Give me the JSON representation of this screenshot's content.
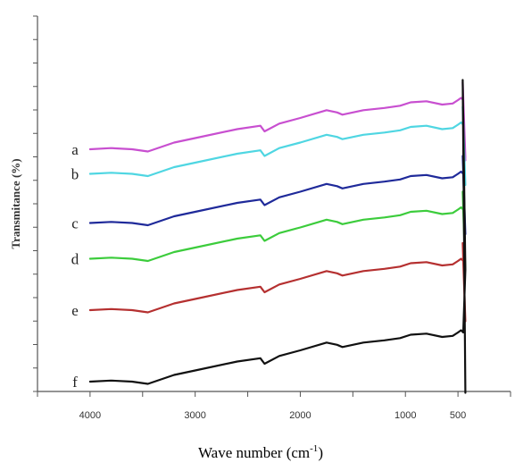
{
  "chart_data": {
    "type": "line",
    "xlabel": "Wave number (cm",
    "xlabel_sup": "-1",
    "xlabel_close": ")",
    "ylabel": "Transmitance (%)",
    "xlim": [
      4500,
      0
    ],
    "x_ticks": [
      4000,
      3000,
      2000,
      1000,
      500
    ],
    "x_tick_labels": [
      "4000",
      "3000",
      "2000",
      "1000",
      "500"
    ],
    "grid": false,
    "series": [
      {
        "name": "a",
        "color": "#c84fd0",
        "offset": 9.0,
        "x": [
          4000,
          3800,
          3600,
          3450,
          3200,
          3000,
          2600,
          2380,
          2340,
          2200,
          2000,
          1750,
          1650,
          1600,
          1400,
          1200,
          1050,
          950,
          800,
          650,
          550,
          500,
          470,
          450,
          430
        ]
      },
      {
        "name": "b",
        "color": "#4fd6e2",
        "offset": 7.9,
        "x": [
          4000,
          3800,
          3600,
          3450,
          3200,
          3000,
          2600,
          2380,
          2340,
          2200,
          2000,
          1750,
          1650,
          1600,
          1400,
          1200,
          1050,
          950,
          800,
          650,
          550,
          500,
          470,
          450,
          430
        ]
      },
      {
        "name": "c",
        "color": "#1f2a9a",
        "offset": 5.7,
        "x": [
          4000,
          3800,
          3600,
          3450,
          3200,
          3000,
          2600,
          2380,
          2340,
          2200,
          2000,
          1750,
          1650,
          1600,
          1400,
          1200,
          1050,
          950,
          800,
          650,
          550,
          500,
          470,
          450,
          430
        ]
      },
      {
        "name": "d",
        "color": "#3ccc3c",
        "offset": 4.1,
        "x": [
          4000,
          3800,
          3600,
          3450,
          3200,
          3000,
          2600,
          2380,
          2340,
          2200,
          2000,
          1750,
          1650,
          1600,
          1400,
          1200,
          1050,
          950,
          800,
          650,
          550,
          500,
          470,
          450,
          430
        ]
      },
      {
        "name": "e",
        "color": "#b53030",
        "offset": 1.8,
        "x": [
          4000,
          3800,
          3600,
          3450,
          3200,
          3000,
          2600,
          2380,
          2340,
          2200,
          2000,
          1750,
          1650,
          1600,
          1400,
          1200,
          1050,
          950,
          800,
          650,
          550,
          500,
          470,
          450,
          430
        ]
      },
      {
        "name": "f",
        "color": "#111111",
        "offset": -1.4,
        "x": [
          4000,
          3800,
          3600,
          3450,
          3200,
          3000,
          2600,
          2380,
          2340,
          2200,
          2000,
          1750,
          1650,
          1600,
          1400,
          1200,
          1050,
          950,
          800,
          650,
          550,
          500,
          470,
          450,
          430
        ]
      }
    ],
    "shape_values": [
      0.0,
      0.05,
      0.0,
      -0.1,
      0.3,
      0.5,
      0.9,
      1.05,
      0.8,
      1.15,
      1.4,
      1.75,
      1.65,
      1.55,
      1.75,
      1.85,
      1.95,
      2.1,
      2.15,
      2.0,
      2.05,
      2.2,
      2.3,
      2.2,
      -2.5
    ]
  }
}
